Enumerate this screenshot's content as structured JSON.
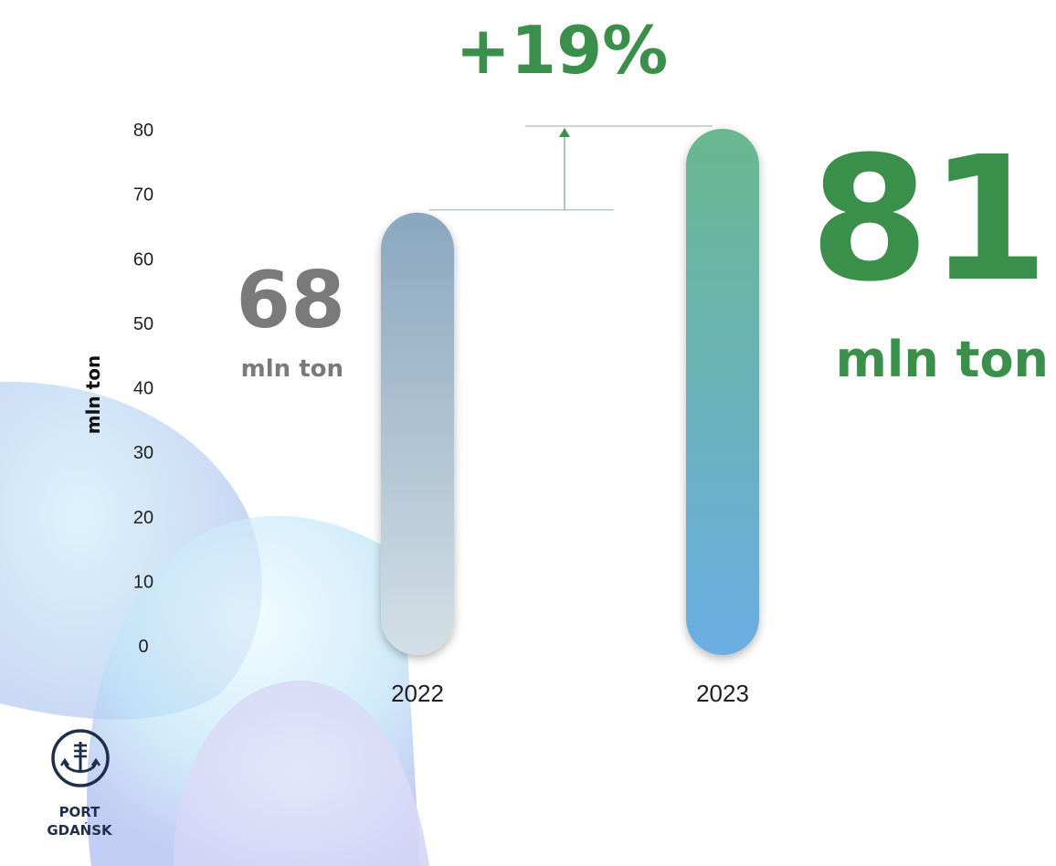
{
  "chart_data": {
    "type": "bar",
    "categories": [
      "2022",
      "2023"
    ],
    "values": [
      68,
      81
    ],
    "ylabel": "mln ton",
    "ylim": [
      0,
      80
    ],
    "yticks": [
      0,
      10,
      20,
      30,
      40,
      50,
      60,
      70,
      80
    ],
    "grid": false,
    "change_label": "+19%",
    "data_labels": [
      {
        "value": "68",
        "unit": "mln ton",
        "color": "#7a7a7a"
      },
      {
        "value": "81",
        "unit": "mln ton",
        "color": "#3a8f4a"
      }
    ],
    "bar_gradients": [
      {
        "top": "#8aa7bf",
        "bottom": "#d3dfe6"
      },
      {
        "top": "#6bb78f",
        "bottom": "#6aaee4"
      }
    ]
  },
  "logo": {
    "line1": "PORT",
    "line2": "GDAŃSK",
    "icon": "anchor-icon"
  },
  "colors": {
    "accent_green": "#3a8f4a",
    "muted_gray": "#7a7a7a"
  }
}
